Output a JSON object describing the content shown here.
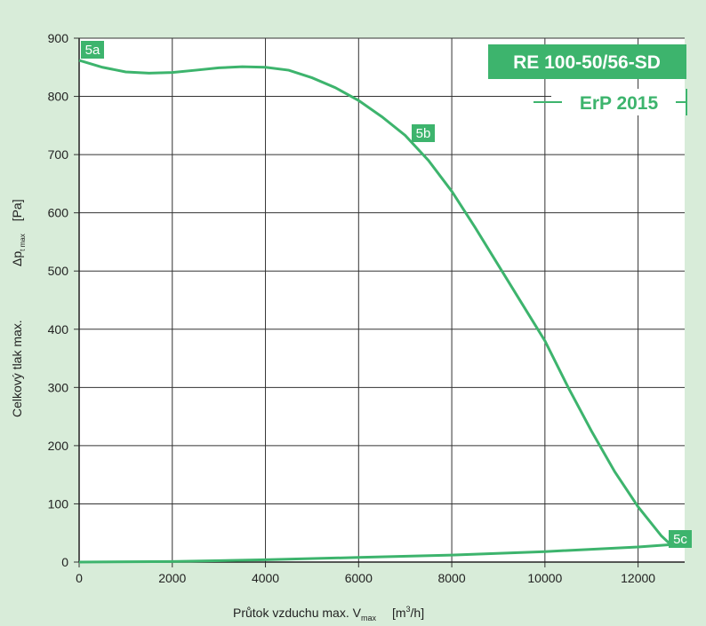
{
  "chart_data": {
    "type": "line",
    "title": "RE 100-50/56-SD",
    "subtitle": "ErP 2015",
    "x_label": {
      "text": "Průtok vzduchu max. V",
      "sub": "max",
      "unit_pre": "[m",
      "unit_sup": "3",
      "unit_post": "/h]"
    },
    "y_label": {
      "text": "Celkový tlak max.",
      "symbol": "Δp",
      "sub": "t max",
      "unit": "[Pa]"
    },
    "annotations": [
      "5a",
      "5b",
      "5c"
    ],
    "series": [
      {
        "color": "#3db46d",
        "x": [
          0,
          500,
          1000,
          1500,
          2000,
          2500,
          3000,
          3500,
          4000,
          4500,
          5000,
          5500,
          6000,
          6500,
          7000,
          7500,
          8000,
          8500,
          9000,
          9500,
          10000,
          10500,
          11000,
          11500,
          12000,
          12500,
          12700
        ],
        "values": [
          862,
          850,
          842,
          840,
          841,
          845,
          849,
          851,
          850,
          845,
          832,
          815,
          793,
          765,
          733,
          690,
          637,
          575,
          510,
          445,
          380,
          300,
          225,
          155,
          95,
          45,
          30
        ]
      },
      {
        "color": "#3db46d",
        "x": [
          0,
          2000,
          4000,
          6000,
          8000,
          10000,
          12000,
          12700
        ],
        "values": [
          0,
          1,
          4,
          8,
          12,
          18,
          26,
          30
        ]
      }
    ],
    "xlim": [
      0,
      13000
    ],
    "xticks": [
      0,
      2000,
      4000,
      6000,
      8000,
      10000,
      12000
    ],
    "ylim": [
      0,
      900
    ],
    "yticks": [
      0,
      100,
      200,
      300,
      400,
      500,
      600,
      700,
      800,
      900
    ],
    "grid": true
  }
}
